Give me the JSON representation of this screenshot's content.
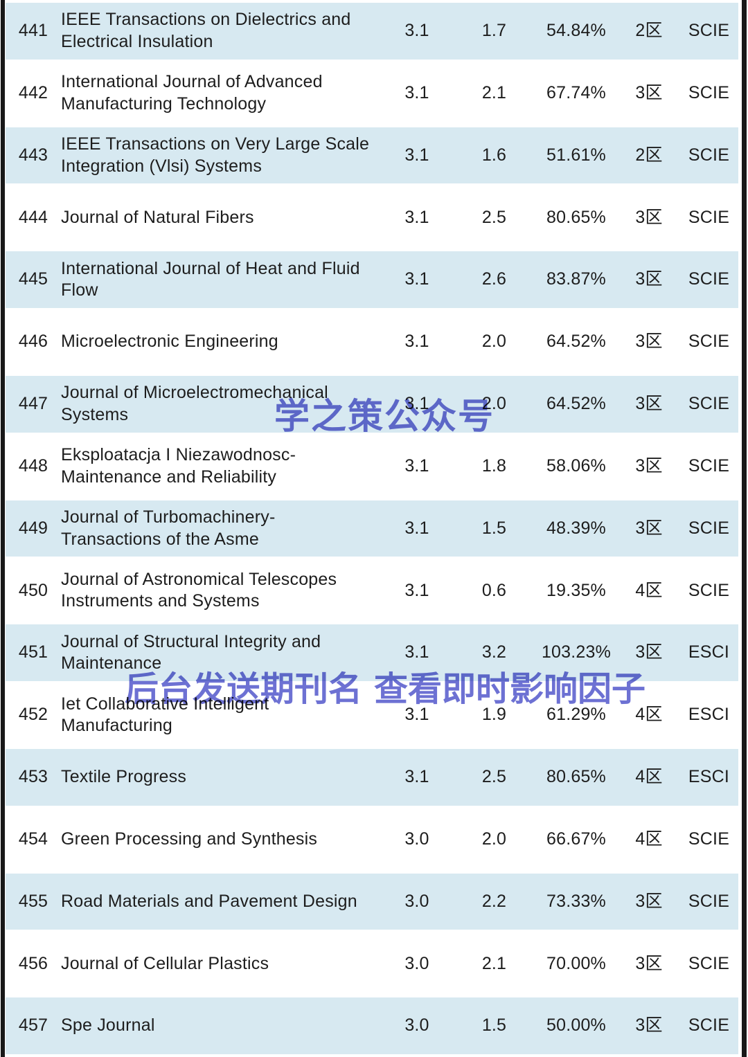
{
  "watermarks": {
    "center": "学之策公众号",
    "lower": "后台发送期刊名 查看即时影响因子"
  },
  "colors": {
    "row_highlight": "#d7e9f1",
    "edge_bar": "#181818",
    "text": "#1d1d1d",
    "watermark": "#6065d0"
  },
  "table": {
    "rows": [
      {
        "rank": "441",
        "name": "IEEE Transactions on Dielectrics and Electrical Insulation",
        "if": "3.1",
        "immediacy": "1.7",
        "percent": "54.84%",
        "partition": "2区",
        "index": "SCIE"
      },
      {
        "rank": "442",
        "name": "International Journal of Advanced Manufacturing Technology",
        "if": "3.1",
        "immediacy": "2.1",
        "percent": "67.74%",
        "partition": "3区",
        "index": "SCIE"
      },
      {
        "rank": "443",
        "name": "IEEE Transactions on Very Large Scale Integration (Vlsi) Systems",
        "if": "3.1",
        "immediacy": "1.6",
        "percent": "51.61%",
        "partition": "2区",
        "index": "SCIE"
      },
      {
        "rank": "444",
        "name": "Journal of Natural Fibers",
        "if": "3.1",
        "immediacy": "2.5",
        "percent": "80.65%",
        "partition": "3区",
        "index": "SCIE"
      },
      {
        "rank": "445",
        "name": "International Journal of Heat and Fluid Flow",
        "if": "3.1",
        "immediacy": "2.6",
        "percent": "83.87%",
        "partition": "3区",
        "index": "SCIE"
      },
      {
        "rank": "446",
        "name": "Microelectronic Engineering",
        "if": "3.1",
        "immediacy": "2.0",
        "percent": "64.52%",
        "partition": "3区",
        "index": "SCIE"
      },
      {
        "rank": "447",
        "name": "Journal of Microelectromechanical Systems",
        "if": "3.1",
        "immediacy": "2.0",
        "percent": "64.52%",
        "partition": "3区",
        "index": "SCIE"
      },
      {
        "rank": "448",
        "name": "Eksploatacja I Niezawodnosc-Maintenance and Reliability",
        "if": "3.1",
        "immediacy": "1.8",
        "percent": "58.06%",
        "partition": "3区",
        "index": "SCIE"
      },
      {
        "rank": "449",
        "name": "Journal of Turbomachinery-Transactions of the Asme",
        "if": "3.1",
        "immediacy": "1.5",
        "percent": "48.39%",
        "partition": "3区",
        "index": "SCIE"
      },
      {
        "rank": "450",
        "name": "Journal of Astronomical Telescopes Instruments and Systems",
        "if": "3.1",
        "immediacy": "0.6",
        "percent": "19.35%",
        "partition": "4区",
        "index": "SCIE"
      },
      {
        "rank": "451",
        "name": "Journal of Structural Integrity and Maintenance",
        "if": "3.1",
        "immediacy": "3.2",
        "percent": "103.23%",
        "partition": "3区",
        "index": "ESCI"
      },
      {
        "rank": "452",
        "name": "Iet Collaborative Intelligent Manufacturing",
        "if": "3.1",
        "immediacy": "1.9",
        "percent": "61.29%",
        "partition": "4区",
        "index": "ESCI"
      },
      {
        "rank": "453",
        "name": "Textile Progress",
        "if": "3.1",
        "immediacy": "2.5",
        "percent": "80.65%",
        "partition": "4区",
        "index": "ESCI"
      },
      {
        "rank": "454",
        "name": "Green Processing and Synthesis",
        "if": "3.0",
        "immediacy": "2.0",
        "percent": "66.67%",
        "partition": "4区",
        "index": "SCIE"
      },
      {
        "rank": "455",
        "name": "Road Materials and Pavement Design",
        "if": "3.0",
        "immediacy": "2.2",
        "percent": "73.33%",
        "partition": "3区",
        "index": "SCIE"
      },
      {
        "rank": "456",
        "name": "Journal of Cellular Plastics",
        "if": "3.0",
        "immediacy": "2.1",
        "percent": "70.00%",
        "partition": "3区",
        "index": "SCIE"
      },
      {
        "rank": "457",
        "name": "Spe Journal",
        "if": "3.0",
        "immediacy": "1.5",
        "percent": "50.00%",
        "partition": "3区",
        "index": "SCIE"
      }
    ]
  }
}
